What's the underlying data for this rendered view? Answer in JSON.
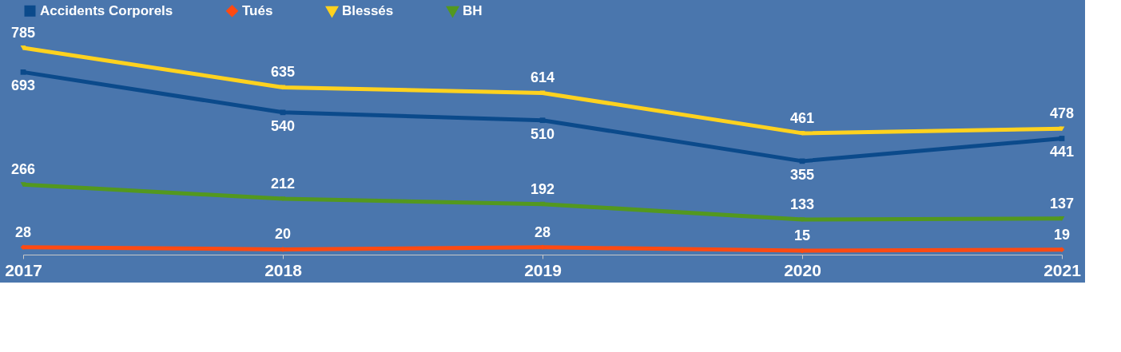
{
  "chart_data": {
    "type": "line",
    "categories": [
      "2017",
      "2018",
      "2019",
      "2020",
      "2021"
    ],
    "series": [
      {
        "name": "Accidents Corporels",
        "color": "#0b4a8b",
        "marker": "square",
        "values": [
          693,
          540,
          510,
          355,
          441
        ]
      },
      {
        "name": "Tués",
        "color": "#ff4a12",
        "marker": "diamond",
        "values": [
          28,
          20,
          28,
          15,
          19
        ]
      },
      {
        "name": "Blessés",
        "color": "#ffd21f",
        "marker": "triangle",
        "values": [
          785,
          635,
          614,
          461,
          478
        ]
      },
      {
        "name": "BH",
        "color": "#53981f",
        "marker": "triangle",
        "values": [
          266,
          212,
          192,
          133,
          137
        ]
      }
    ],
    "data_labels": true,
    "legend": "top",
    "grid": false,
    "tick_labels": "x",
    "line_style": "solid"
  }
}
